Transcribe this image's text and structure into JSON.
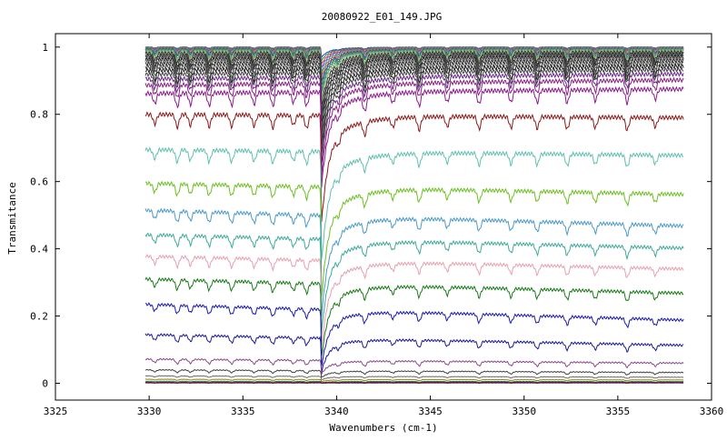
{
  "chart_data": {
    "type": "line",
    "title": "20080922_E01_149.JPG",
    "xlabel": "Wavenumbers (cm-1)",
    "ylabel": "Transmitance",
    "xlim": [
      3325,
      3360
    ],
    "ylim": [
      -0.05,
      1.04
    ],
    "x_ticks": [
      "3325",
      "3330",
      "3335",
      "3340",
      "3345",
      "3350",
      "3355",
      "3360"
    ],
    "y_ticks": [
      "0",
      "0.2",
      "0.4",
      "0.6",
      "0.8",
      "1"
    ],
    "x_range": [
      3329.8,
      3358.5
    ],
    "grid": false,
    "legend": "none",
    "main_dip_center": 3339.2,
    "minor_line_positions": [
      3330.3,
      3331.5,
      3332.2,
      3333.2,
      3334.4,
      3335.6,
      3336.6,
      3337.7,
      3338.4,
      3340.1,
      3341.5,
      3343.0,
      3344.4,
      3345.9,
      3347.6,
      3349.3,
      3350.7,
      3352.3,
      3353.8,
      3355.5,
      3357.0
    ],
    "series": [
      {
        "start": 1.0,
        "end": 1.0,
        "main_depth": 0.03,
        "line_depth": 0.004,
        "color": "#1f3fb0"
      },
      {
        "start": 1.0,
        "end": 1.0,
        "main_depth": 0.04,
        "line_depth": 0.006,
        "color": "#2e8b57"
      },
      {
        "start": 0.999,
        "end": 0.999,
        "main_depth": 0.05,
        "line_depth": 0.008,
        "color": "#d04040"
      },
      {
        "start": 0.998,
        "end": 0.998,
        "main_depth": 0.06,
        "line_depth": 0.01,
        "color": "#7a3fb0"
      },
      {
        "start": 0.997,
        "end": 0.997,
        "main_depth": 0.07,
        "line_depth": 0.012,
        "color": "#40a0c0"
      },
      {
        "start": 0.996,
        "end": 0.996,
        "main_depth": 0.08,
        "line_depth": 0.014,
        "color": "#8a8a20"
      },
      {
        "start": 0.995,
        "end": 0.995,
        "main_depth": 0.09,
        "line_depth": 0.016,
        "color": "#c060a0"
      },
      {
        "start": 0.994,
        "end": 0.994,
        "main_depth": 0.1,
        "line_depth": 0.018,
        "color": "#404040"
      },
      {
        "start": 0.993,
        "end": 0.993,
        "main_depth": 0.11,
        "line_depth": 0.02,
        "color": "#3070d0"
      },
      {
        "start": 0.992,
        "end": 0.992,
        "main_depth": 0.12,
        "line_depth": 0.022,
        "color": "#20a020"
      },
      {
        "start": 0.99,
        "end": 0.992,
        "main_depth": 0.13,
        "line_depth": 0.024,
        "color": "#707070"
      },
      {
        "start": 0.988,
        "end": 0.99,
        "main_depth": 0.14,
        "line_depth": 0.026,
        "color": "#60b0b0"
      },
      {
        "start": 0.985,
        "end": 0.988,
        "main_depth": 0.15,
        "line_depth": 0.028,
        "color": "#a0c060"
      },
      {
        "start": 0.982,
        "end": 0.985,
        "main_depth": 0.16,
        "line_depth": 0.03,
        "color": "#303030"
      },
      {
        "start": 0.978,
        "end": 0.982,
        "main_depth": 0.17,
        "line_depth": 0.03,
        "color": "#5a5a5a"
      },
      {
        "start": 0.974,
        "end": 0.979,
        "main_depth": 0.18,
        "line_depth": 0.032,
        "color": "#2a2a2a"
      },
      {
        "start": 0.969,
        "end": 0.975,
        "main_depth": 0.19,
        "line_depth": 0.032,
        "color": "#4a4a4a"
      },
      {
        "start": 0.963,
        "end": 0.971,
        "main_depth": 0.2,
        "line_depth": 0.034,
        "color": "#1a1a1a"
      },
      {
        "start": 0.957,
        "end": 0.966,
        "main_depth": 0.21,
        "line_depth": 0.034,
        "color": "#6a6a6a"
      },
      {
        "start": 0.95,
        "end": 0.96,
        "main_depth": 0.22,
        "line_depth": 0.036,
        "color": "#303030"
      },
      {
        "start": 0.941,
        "end": 0.952,
        "main_depth": 0.23,
        "line_depth": 0.036,
        "color": "#505050"
      },
      {
        "start": 0.931,
        "end": 0.943,
        "main_depth": 0.24,
        "line_depth": 0.038,
        "color": "#202020"
      },
      {
        "start": 0.919,
        "end": 0.933,
        "main_depth": 0.25,
        "line_depth": 0.038,
        "color": "#404040"
      },
      {
        "start": 0.905,
        "end": 0.92,
        "main_depth": 0.26,
        "line_depth": 0.04,
        "color": "#6a2a8a"
      },
      {
        "start": 0.887,
        "end": 0.902,
        "main_depth": 0.27,
        "line_depth": 0.04,
        "color": "#8a2080"
      },
      {
        "start": 0.862,
        "end": 0.875,
        "main_depth": 0.28,
        "line_depth": 0.042,
        "color": "#8b1a8b"
      },
      {
        "start": 0.8,
        "end": 0.79,
        "main_depth": 0.32,
        "line_depth": 0.04,
        "color": "#8b1a1a"
      },
      {
        "start": 0.695,
        "end": 0.678,
        "main_depth": 0.33,
        "line_depth": 0.038,
        "color": "#5fc0b0"
      },
      {
        "start": 0.595,
        "end": 0.562,
        "main_depth": 0.33,
        "line_depth": 0.036,
        "color": "#6cc020"
      },
      {
        "start": 0.515,
        "end": 0.468,
        "main_depth": 0.3,
        "line_depth": 0.034,
        "color": "#4a9ac8"
      },
      {
        "start": 0.442,
        "end": 0.402,
        "main_depth": 0.28,
        "line_depth": 0.032,
        "color": "#3faa9a"
      },
      {
        "start": 0.378,
        "end": 0.34,
        "main_depth": 0.26,
        "line_depth": 0.03,
        "color": "#e8a0b0"
      },
      {
        "start": 0.31,
        "end": 0.268,
        "main_depth": 0.22,
        "line_depth": 0.03,
        "color": "#1a7a1a"
      },
      {
        "start": 0.235,
        "end": 0.188,
        "main_depth": 0.17,
        "line_depth": 0.026,
        "color": "#1a1ab0"
      },
      {
        "start": 0.145,
        "end": 0.113,
        "main_depth": 0.1,
        "line_depth": 0.022,
        "color": "#1a1a9a"
      },
      {
        "start": 0.072,
        "end": 0.06,
        "main_depth": 0.04,
        "line_depth": 0.014,
        "color": "#8a4a8a"
      },
      {
        "start": 0.04,
        "end": 0.032,
        "main_depth": 0.02,
        "line_depth": 0.008,
        "color": "#404040"
      },
      {
        "start": 0.022,
        "end": 0.018,
        "main_depth": 0.01,
        "line_depth": 0.004,
        "color": "#6a6a6a"
      },
      {
        "start": 0.012,
        "end": 0.01,
        "main_depth": 0.006,
        "line_depth": 0.003,
        "color": "#a07a20"
      },
      {
        "start": 0.006,
        "end": 0.005,
        "main_depth": 0.004,
        "line_depth": 0.002,
        "color": "#2a8a2a"
      },
      {
        "start": 0.003,
        "end": 0.003,
        "main_depth": 0.002,
        "line_depth": 0.002,
        "color": "#1a1aa0"
      },
      {
        "start": 0.001,
        "end": 0.001,
        "main_depth": 0.001,
        "line_depth": 0.001,
        "color": "#8a1a1a"
      }
    ]
  }
}
